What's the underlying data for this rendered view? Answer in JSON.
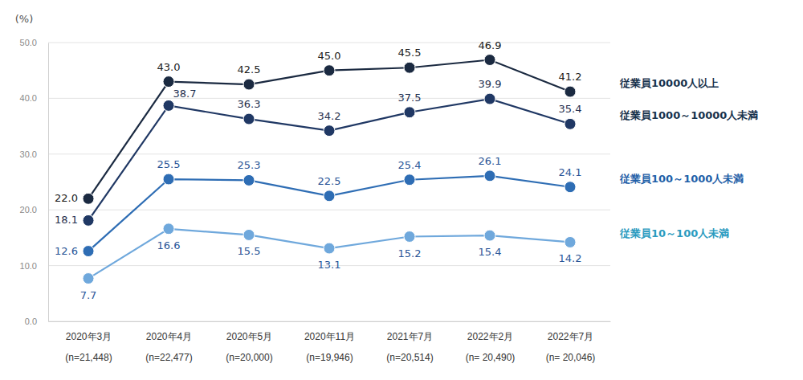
{
  "chart_data": {
    "type": "line",
    "y_label": "(%)",
    "categories": [
      "2020年3月\n(n=21,448)",
      "2020年4月\n(n=22,477)",
      "2020年5月\n(n=20,000)",
      "2020年11月\n(n=19,946)",
      "2021年7月\n(n=20,514)",
      "2022年2月\n(n= 20,490)",
      "2022年7月\n(n= 20,046)"
    ],
    "series": [
      {
        "name": "従業員10000人以上",
        "color": "#1b2a41",
        "marker": "circle",
        "values": [
          22.0,
          43.0,
          42.5,
          45.0,
          45.5,
          46.9,
          41.2
        ],
        "value_labels": [
          "22.0",
          "43.0",
          "42.5",
          "45.0",
          "45.5",
          "46.9",
          "41.2"
        ]
      },
      {
        "name": "従業員1000～10000人未満",
        "color": "#203864",
        "marker": "circle",
        "values": [
          18.1,
          38.7,
          36.3,
          34.2,
          37.5,
          39.9,
          35.4
        ],
        "value_labels": [
          "18.1",
          "38.7",
          "36.3",
          "34.2",
          "37.5",
          "39.9",
          "35.4"
        ]
      },
      {
        "name": "従業員100～1000人未満",
        "color": "#2e6db4",
        "marker": "circle",
        "values": [
          12.6,
          25.5,
          25.3,
          22.5,
          25.4,
          26.1,
          24.1
        ],
        "value_labels": [
          "12.6",
          "25.5",
          "25.3",
          "22.5",
          "25.4",
          "26.1",
          "24.1"
        ]
      },
      {
        "name": "従業員10～100人未満",
        "color": "#6fa8dc",
        "marker": "circle",
        "values": [
          7.7,
          16.6,
          15.5,
          13.1,
          15.2,
          15.4,
          14.2
        ],
        "value_labels": [
          "7.7",
          "16.6",
          "15.5",
          "13.1",
          "15.2",
          "15.4",
          "14.2"
        ]
      }
    ],
    "ylim": [
      0,
      50
    ],
    "yticks": [
      {
        "value": 0,
        "label": "0.0"
      },
      {
        "value": 10,
        "label": "10.0"
      },
      {
        "value": 20,
        "label": "20.0"
      },
      {
        "value": 30,
        "label": "30.0"
      },
      {
        "value": 40,
        "label": "40.0"
      },
      {
        "value": 50,
        "label": "50.0"
      }
    ],
    "grid": true,
    "data_labels": true
  }
}
